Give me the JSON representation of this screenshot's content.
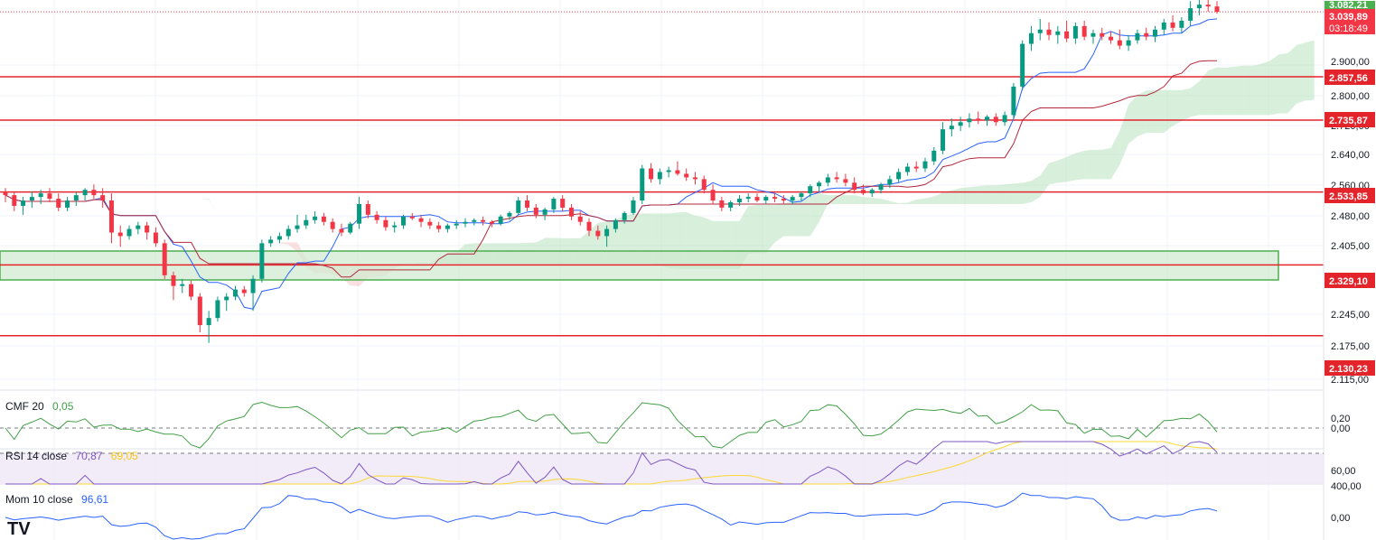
{
  "colors": {
    "up": "#089981",
    "down": "#f23645",
    "tenkan": "#2962ff",
    "kijun": "#b2283c",
    "cloud_bull": "#b7e2bd",
    "cloud_bear": "#f6c7c7",
    "level_red": "#e3242b",
    "level_green": "#4caf50",
    "cmf": "#43a047",
    "rsi": "#7e57c2",
    "rsi_ma": "#fdd835",
    "mom": "#2962ff",
    "zone_fill": "#cfe9cf"
  },
  "price_labels": {
    "top": "3.082,21",
    "current": "3.039,89",
    "countdown": "03:18:49",
    "level_1": "2.857,56",
    "level_2": "2.735,87",
    "level_3": "2.533,85",
    "level_4": "2.329,10",
    "level_5": "2.130,23"
  },
  "axis_ticks": [
    "2.900,00",
    "2.800,00",
    "2.720,00",
    "2.640,00",
    "2.560,00",
    "2.480,00",
    "2.405,00",
    "2.245,00",
    "2.175,00",
    "2.115,00"
  ],
  "indicators": {
    "cmf": {
      "name": "CMF 20",
      "value": "0,05",
      "ticks": [
        "0,20",
        "0,00"
      ]
    },
    "rsi": {
      "name": "RSI 14 close",
      "value": "70,87",
      "ma_value": "69,05",
      "ticks": [
        "60,00"
      ]
    },
    "mom": {
      "name": "Mom 10 close",
      "value": "96,61",
      "ticks": [
        "400,00",
        "0,00"
      ]
    }
  },
  "logo": "TV",
  "chart_data": {
    "type": "candlestick",
    "levels": [
      3082.21,
      2857.56,
      2735.87,
      2533.85,
      2329.1,
      2130.23
    ],
    "support_zone": [
      2329.1,
      2405.0
    ],
    "last_price": 3039.89,
    "candles": [
      [
        2535,
        2545,
        2505,
        2525
      ],
      [
        2525,
        2535,
        2480,
        2495
      ],
      [
        2495,
        2520,
        2470,
        2510
      ],
      [
        2510,
        2535,
        2490,
        2520
      ],
      [
        2520,
        2540,
        2500,
        2530
      ],
      [
        2530,
        2545,
        2505,
        2515
      ],
      [
        2515,
        2530,
        2480,
        2490
      ],
      [
        2490,
        2520,
        2480,
        2510
      ],
      [
        2510,
        2535,
        2495,
        2525
      ],
      [
        2525,
        2545,
        2510,
        2540
      ],
      [
        2540,
        2555,
        2515,
        2525
      ],
      [
        2525,
        2545,
        2490,
        2510
      ],
      [
        2510,
        2530,
        2390,
        2420
      ],
      [
        2420,
        2440,
        2380,
        2410
      ],
      [
        2410,
        2440,
        2400,
        2430
      ],
      [
        2430,
        2450,
        2415,
        2440
      ],
      [
        2440,
        2450,
        2400,
        2420
      ],
      [
        2420,
        2435,
        2380,
        2390
      ],
      [
        2390,
        2400,
        2290,
        2300
      ],
      [
        2300,
        2310,
        2230,
        2270
      ],
      [
        2270,
        2290,
        2250,
        2275
      ],
      [
        2275,
        2285,
        2230,
        2240
      ],
      [
        2240,
        2250,
        2140,
        2160
      ],
      [
        2160,
        2200,
        2110,
        2180
      ],
      [
        2180,
        2240,
        2170,
        2230
      ],
      [
        2230,
        2250,
        2200,
        2240
      ],
      [
        2240,
        2270,
        2230,
        2260
      ],
      [
        2260,
        2270,
        2240,
        2250
      ],
      [
        2250,
        2300,
        2200,
        2290
      ],
      [
        2290,
        2400,
        2280,
        2390
      ],
      [
        2390,
        2410,
        2380,
        2400
      ],
      [
        2400,
        2420,
        2390,
        2410
      ],
      [
        2410,
        2440,
        2400,
        2430
      ],
      [
        2430,
        2470,
        2420,
        2440
      ],
      [
        2440,
        2470,
        2430,
        2455
      ],
      [
        2455,
        2480,
        2445,
        2465
      ],
      [
        2465,
        2475,
        2440,
        2450
      ],
      [
        2450,
        2460,
        2420,
        2430
      ],
      [
        2430,
        2445,
        2410,
        2420
      ],
      [
        2420,
        2450,
        2415,
        2445
      ],
      [
        2445,
        2520,
        2430,
        2500
      ],
      [
        2500,
        2510,
        2460,
        2470
      ],
      [
        2470,
        2480,
        2445,
        2455
      ],
      [
        2455,
        2465,
        2425,
        2435
      ],
      [
        2435,
        2450,
        2420,
        2440
      ],
      [
        2440,
        2470,
        2430,
        2465
      ],
      [
        2465,
        2475,
        2455,
        2460
      ],
      [
        2460,
        2470,
        2435,
        2450
      ],
      [
        2450,
        2460,
        2430,
        2440
      ],
      [
        2440,
        2450,
        2420,
        2430
      ],
      [
        2430,
        2445,
        2420,
        2440
      ],
      [
        2440,
        2455,
        2430,
        2445
      ],
      [
        2445,
        2460,
        2435,
        2450
      ],
      [
        2450,
        2460,
        2440,
        2455
      ],
      [
        2455,
        2465,
        2440,
        2450
      ],
      [
        2450,
        2455,
        2435,
        2445
      ],
      [
        2445,
        2470,
        2440,
        2465
      ],
      [
        2465,
        2480,
        2455,
        2475
      ],
      [
        2475,
        2520,
        2470,
        2510
      ],
      [
        2510,
        2525,
        2480,
        2490
      ],
      [
        2490,
        2500,
        2460,
        2470
      ],
      [
        2470,
        2490,
        2455,
        2485
      ],
      [
        2485,
        2520,
        2475,
        2515
      ],
      [
        2515,
        2525,
        2480,
        2490
      ],
      [
        2490,
        2500,
        2455,
        2465
      ],
      [
        2465,
        2480,
        2440,
        2450
      ],
      [
        2450,
        2460,
        2410,
        2425
      ],
      [
        2425,
        2440,
        2400,
        2410
      ],
      [
        2410,
        2440,
        2380,
        2430
      ],
      [
        2430,
        2460,
        2420,
        2455
      ],
      [
        2455,
        2480,
        2445,
        2475
      ],
      [
        2475,
        2520,
        2470,
        2510
      ],
      [
        2510,
        2610,
        2500,
        2600
      ],
      [
        2600,
        2615,
        2560,
        2570
      ],
      [
        2570,
        2600,
        2555,
        2590
      ],
      [
        2590,
        2605,
        2575,
        2595
      ],
      [
        2595,
        2620,
        2580,
        2585
      ],
      [
        2585,
        2600,
        2565,
        2575
      ],
      [
        2575,
        2590,
        2555,
        2570
      ],
      [
        2570,
        2580,
        2530,
        2540
      ],
      [
        2540,
        2555,
        2500,
        2510
      ],
      [
        2510,
        2520,
        2480,
        2490
      ],
      [
        2490,
        2510,
        2480,
        2505
      ],
      [
        2505,
        2525,
        2495,
        2515
      ],
      [
        2515,
        2530,
        2505,
        2520
      ],
      [
        2520,
        2530,
        2505,
        2510
      ],
      [
        2510,
        2525,
        2500,
        2520
      ],
      [
        2520,
        2530,
        2505,
        2515
      ],
      [
        2515,
        2525,
        2500,
        2510
      ],
      [
        2510,
        2525,
        2500,
        2520
      ],
      [
        2520,
        2535,
        2510,
        2530
      ],
      [
        2530,
        2555,
        2520,
        2550
      ],
      [
        2550,
        2565,
        2535,
        2560
      ],
      [
        2560,
        2585,
        2550,
        2575
      ],
      [
        2575,
        2590,
        2560,
        2570
      ],
      [
        2570,
        2585,
        2550,
        2560
      ],
      [
        2560,
        2575,
        2530,
        2540
      ],
      [
        2540,
        2555,
        2525,
        2530
      ],
      [
        2530,
        2545,
        2520,
        2540
      ],
      [
        2540,
        2560,
        2530,
        2555
      ],
      [
        2555,
        2580,
        2545,
        2570
      ],
      [
        2570,
        2600,
        2560,
        2590
      ],
      [
        2590,
        2615,
        2580,
        2605
      ],
      [
        2605,
        2620,
        2590,
        2600
      ],
      [
        2600,
        2630,
        2590,
        2620
      ],
      [
        2620,
        2660,
        2610,
        2650
      ],
      [
        2650,
        2730,
        2640,
        2710
      ],
      [
        2710,
        2740,
        2690,
        2720
      ],
      [
        2720,
        2745,
        2705,
        2730
      ],
      [
        2730,
        2755,
        2715,
        2740
      ],
      [
        2740,
        2760,
        2725,
        2735
      ],
      [
        2735,
        2750,
        2720,
        2745
      ],
      [
        2745,
        2755,
        2720,
        2730
      ],
      [
        2730,
        2760,
        2720,
        2750
      ],
      [
        2750,
        2840,
        2740,
        2830
      ],
      [
        2830,
        2960,
        2820,
        2950
      ],
      [
        2950,
        3000,
        2930,
        2980
      ],
      [
        2980,
        3020,
        2960,
        2990
      ],
      [
        2990,
        3010,
        2960,
        2975
      ],
      [
        2975,
        3000,
        2950,
        2985
      ],
      [
        2985,
        3015,
        2955,
        2965
      ],
      [
        2965,
        3010,
        2950,
        3000
      ],
      [
        3000,
        3015,
        2960,
        2970
      ],
      [
        2970,
        2990,
        2950,
        2980
      ],
      [
        2980,
        2995,
        2960,
        2970
      ],
      [
        2970,
        2985,
        2950,
        2960
      ],
      [
        2960,
        2990,
        2935,
        2945
      ],
      [
        2945,
        2975,
        2930,
        2960
      ],
      [
        2960,
        2990,
        2950,
        2980
      ],
      [
        2980,
        2995,
        2960,
        2970
      ],
      [
        2970,
        3000,
        2955,
        2990
      ],
      [
        2990,
        3020,
        2975,
        3010
      ],
      [
        3010,
        3030,
        2985,
        2995
      ],
      [
        2995,
        3025,
        2980,
        3015
      ],
      [
        3015,
        3070,
        3000,
        3050
      ],
      [
        3050,
        3082,
        3030,
        3060
      ],
      [
        3060,
        3085,
        3040,
        3055
      ],
      [
        3055,
        3070,
        3035,
        3040
      ]
    ]
  }
}
